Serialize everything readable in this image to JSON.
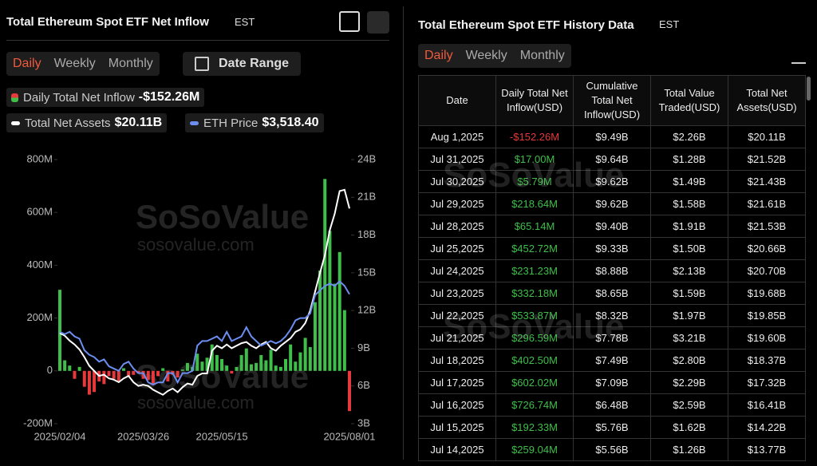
{
  "left_panel": {
    "title": "Total Ethereum Spot ETF Net Inflow",
    "timezone": "EST",
    "tabs": [
      "Daily",
      "Weekly",
      "Monthly"
    ],
    "date_range": "Date Range"
  },
  "chart_data": {
    "type": "bar-line",
    "watermark": "SoSoValue",
    "watermark_url": "sosovalue.com",
    "categories": [
      "2025/02/04",
      null,
      null,
      null,
      null,
      null,
      null,
      null,
      null,
      null,
      null,
      null,
      null,
      null,
      null,
      null,
      null,
      "2025/03/26",
      null,
      null,
      null,
      null,
      null,
      null,
      null,
      null,
      null,
      null,
      null,
      null,
      null,
      null,
      null,
      "2025/05/15",
      null,
      null,
      null,
      null,
      null,
      null,
      null,
      null,
      null,
      null,
      null,
      null,
      null,
      null,
      null,
      null,
      null,
      null,
      null,
      null,
      null,
      null,
      null,
      null,
      null,
      "2025/08/01"
    ],
    "series": [
      {
        "name": "Daily Total Net Inflow",
        "type": "bar",
        "latest_label": "-$152.26M",
        "color": "#3fbf4a",
        "negative_color": "#e5393b",
        "values": [
          307,
          40,
          20,
          -30,
          15,
          -60,
          -90,
          -80,
          -40,
          -50,
          -20,
          -30,
          -40,
          10,
          -20,
          -15,
          -10,
          -30,
          -35,
          -50,
          -20,
          10,
          -40,
          -15,
          -25,
          5,
          30,
          15,
          65,
          35,
          50,
          100,
          60,
          45,
          20,
          -10,
          15,
          60,
          85,
          25,
          30,
          60,
          40,
          80,
          20,
          15,
          45,
          100,
          35,
          70,
          125,
          90,
          260,
          380,
          726.74,
          530,
          330,
          450,
          230,
          -152.26
        ]
      },
      {
        "name": "Total Net Assets",
        "type": "line",
        "axis": "y2",
        "latest_label": "$20.11B",
        "color": "#ffffff",
        "values": [
          10.2,
          10.0,
          9.6,
          9.3,
          8.9,
          8.3,
          7.6,
          7.2,
          6.8,
          6.9,
          6.6,
          6.5,
          6.3,
          6.6,
          6.8,
          6.3,
          6.0,
          6.1,
          6.0,
          5.7,
          5.5,
          5.3,
          5.6,
          5.8,
          5.5,
          5.9,
          6.2,
          6.1,
          6.8,
          7.0,
          7.0,
          8.8,
          9.2,
          9.0,
          9.3,
          9.0,
          9.2,
          9.4,
          9.5,
          9.2,
          9.0,
          9.3,
          9.5,
          9.0,
          8.8,
          9.2,
          9.5,
          9.8,
          10.3,
          10.5,
          11.0,
          12.0,
          13.5,
          15.0,
          16.4,
          18.4,
          19.7,
          21.5,
          21.6,
          20.11
        ]
      },
      {
        "name": "ETH Price",
        "type": "line",
        "axis": "y3",
        "latest_label": "$3,518.40",
        "color": "#6b8ef0",
        "values": [
          2700,
          2650,
          2700,
          2600,
          2550,
          2300,
          2200,
          2150,
          2050,
          2100,
          1950,
          1900,
          1850,
          2000,
          2050,
          1900,
          1800,
          1800,
          1600,
          1550,
          1600,
          1600,
          1800,
          1800,
          1600,
          1800,
          1800,
          1850,
          2400,
          2500,
          2500,
          2550,
          2600,
          2500,
          2700,
          2500,
          2550,
          2600,
          2800,
          2600,
          2500,
          2400,
          2450,
          2500,
          2450,
          2500,
          2600,
          2750,
          2950,
          3000,
          3000,
          3100,
          3500,
          3600,
          3700,
          3750,
          3700,
          3800,
          3700,
          3518.4
        ]
      }
    ],
    "ylim": [
      -200,
      800
    ],
    "yticks": [
      {
        "value": -200,
        "label": "-200M"
      },
      0,
      {
        "value": 200,
        "label": "200M"
      },
      {
        "value": 400,
        "label": "400M"
      },
      {
        "value": 600,
        "label": "600M"
      },
      {
        "value": 800,
        "label": "800M"
      }
    ],
    "y2lim": [
      3,
      24
    ],
    "y2ticks": [
      {
        "value": 3,
        "label": "3B"
      },
      {
        "value": 6,
        "label": "6B"
      },
      {
        "value": 9,
        "label": "9B"
      },
      {
        "value": 12,
        "label": "12B"
      },
      {
        "value": 15,
        "label": "15B"
      },
      {
        "value": 18,
        "label": "18B"
      },
      {
        "value": 21,
        "label": "21B"
      },
      {
        "value": 24,
        "label": "24B"
      }
    ],
    "y3lim": [
      700,
      6450
    ]
  },
  "right_panel": {
    "title": "Total Ethereum Spot ETF History Data",
    "timezone": "EST",
    "tabs": [
      "Daily",
      "Weekly",
      "Monthly"
    ]
  },
  "table": {
    "columns": [
      "Date",
      "Daily Total Net Inflow(USD)",
      "Cumulative Total Net Inflow(USD)",
      "Total Value Traded(USD)",
      "Total Net Assets(USD)"
    ],
    "rows": [
      [
        "Aug 1,2025",
        "-$152.26M",
        "$9.49B",
        "$2.26B",
        "$20.11B"
      ],
      [
        "Jul 31,2025",
        "$17.00M",
        "$9.64B",
        "$1.28B",
        "$21.52B"
      ],
      [
        "Jul 30,2025",
        "$5.79M",
        "$9.62B",
        "$1.49B",
        "$21.43B"
      ],
      [
        "Jul 29,2025",
        "$218.64M",
        "$9.62B",
        "$1.58B",
        "$21.61B"
      ],
      [
        "Jul 28,2025",
        "$65.14M",
        "$9.40B",
        "$1.91B",
        "$21.53B"
      ],
      [
        "Jul 25,2025",
        "$452.72M",
        "$9.33B",
        "$1.50B",
        "$20.66B"
      ],
      [
        "Jul 24,2025",
        "$231.23M",
        "$8.88B",
        "$2.13B",
        "$20.70B"
      ],
      [
        "Jul 23,2025",
        "$332.18M",
        "$8.65B",
        "$1.59B",
        "$19.68B"
      ],
      [
        "Jul 22,2025",
        "$533.87M",
        "$8.32B",
        "$1.97B",
        "$19.85B"
      ],
      [
        "Jul 21,2025",
        "$296.59M",
        "$7.78B",
        "$3.21B",
        "$19.60B"
      ],
      [
        "Jul 18,2025",
        "$402.50M",
        "$7.49B",
        "$2.80B",
        "$18.37B"
      ],
      [
        "Jul 17,2025",
        "$602.02M",
        "$7.09B",
        "$2.29B",
        "$17.32B"
      ],
      [
        "Jul 16,2025",
        "$726.74M",
        "$6.48B",
        "$2.59B",
        "$16.41B"
      ],
      [
        "Jul 15,2025",
        "$192.33M",
        "$5.76B",
        "$1.62B",
        "$14.22B"
      ],
      [
        "Jul 14,2025",
        "$259.04M",
        "$5.56B",
        "$1.26B",
        "$13.77B"
      ]
    ]
  }
}
